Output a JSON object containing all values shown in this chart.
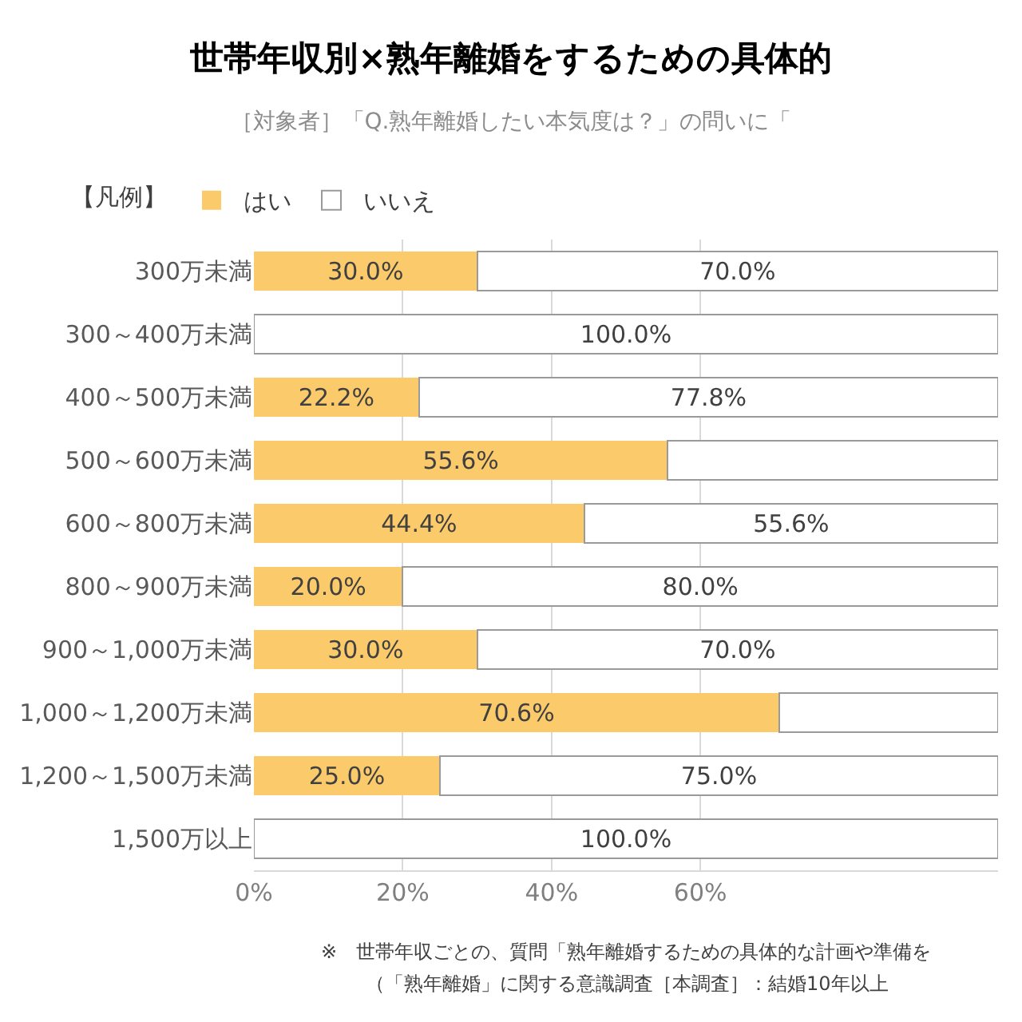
{
  "chart_data": {
    "type": "bar",
    "orientation": "horizontal",
    "stacked": true,
    "title": "世帯年収別×熟年離婚をするための具体的",
    "subtitle": "［対象者］「Q.熟年離婚したい本気度は？」の問いに「",
    "legend_title": "【凡例】",
    "categories": [
      "300万未満",
      "300～400万未満",
      "400～500万未満",
      "500～600万未満",
      "600～800万未満",
      "800～900万未満",
      "900～1,000万未満",
      "1,000～1,200万未満",
      "1,200～1,500万未満",
      "1,500万以上"
    ],
    "series": [
      {
        "name": "はい",
        "color": "#fbca6b",
        "values": [
          30.0,
          0,
          22.2,
          55.6,
          44.4,
          20.0,
          30.0,
          70.6,
          25.0,
          0
        ],
        "value_labels": [
          "30.0%",
          null,
          "22.2%",
          "55.6%",
          "44.4%",
          "20.0%",
          "30.0%",
          "70.6%",
          "25.0%",
          null
        ]
      },
      {
        "name": "いいえ",
        "color": "#ffffff",
        "values": [
          70.0,
          100.0,
          77.8,
          44.4,
          55.6,
          80.0,
          70.0,
          29.4,
          75.0,
          100.0
        ],
        "value_labels": [
          "70.0%",
          "100.0%",
          "77.8%",
          null,
          "55.6%",
          "80.0%",
          "70.0%",
          null,
          "75.0%",
          "100.0%"
        ]
      }
    ],
    "xlim": [
      0,
      100
    ],
    "xticks": [
      {
        "value": 0,
        "label": "0%"
      },
      {
        "value": 20,
        "label": "20%"
      },
      {
        "value": 40,
        "label": "40%"
      },
      {
        "value": 60,
        "label": "60%"
      }
    ],
    "grid": "x",
    "legend": "top left",
    "annotations": [
      "※　世帯年収ごとの、質問「熟年離婚するための具体的な計画や準備を",
      "（「熟年離婚」に関する意識調査［本調査］：結婚10年以上"
    ]
  }
}
